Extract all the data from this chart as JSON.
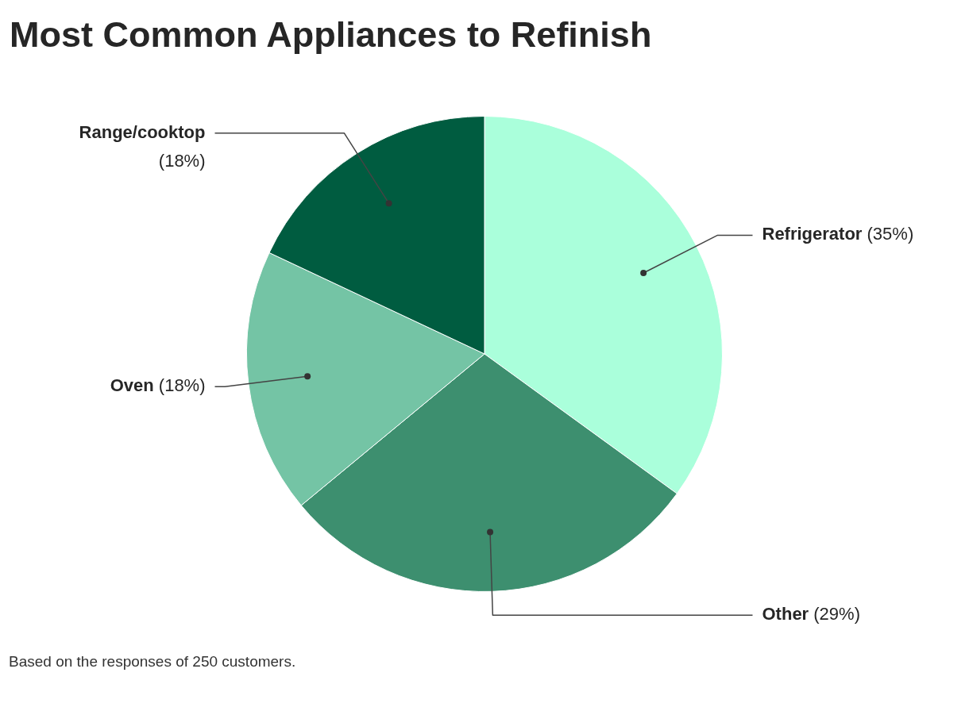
{
  "chart_data": {
    "type": "pie",
    "title": "Most Common Appliances to Refinish",
    "categories": [
      "Refrigerator",
      "Other",
      "Oven",
      "Range/cooktop"
    ],
    "values": [
      35,
      29,
      18,
      18
    ],
    "value_labels": [
      "(35%)",
      "(29%)",
      "(18%)",
      "(18%)"
    ],
    "colors": [
      "#aaffdb",
      "#3d8f6f",
      "#74c4a5",
      "#005c40"
    ],
    "annotations": [
      "Based on the responses of 250 customers."
    ]
  }
}
